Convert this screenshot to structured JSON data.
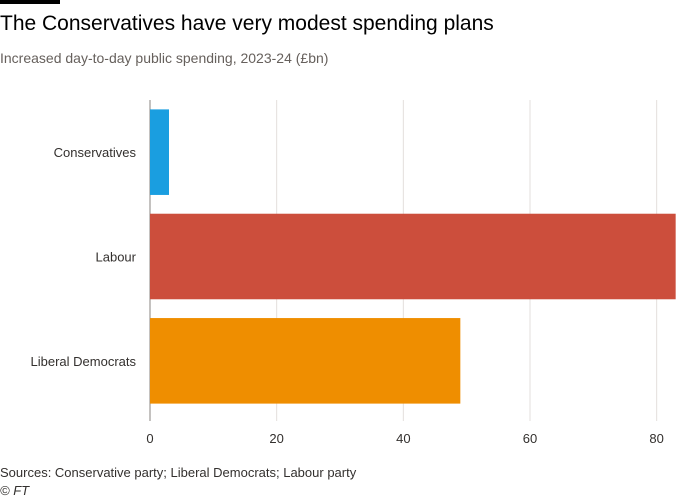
{
  "chart_data": {
    "type": "bar",
    "orientation": "horizontal",
    "title": "The Conservatives have very modest spending plans",
    "subtitle": "Increased day-to-day public spending, 2023-24 (£bn)",
    "categories": [
      "Conservatives",
      "Labour",
      "Liberal Democrats"
    ],
    "values": [
      3,
      83,
      49
    ],
    "colors": [
      "#1a9ee0",
      "#cc4e3c",
      "#ef8e00"
    ],
    "xlim": [
      0,
      84
    ],
    "xticks": [
      "0",
      "20",
      "40",
      "60",
      "80"
    ],
    "xtick_values": [
      0,
      20,
      40,
      60,
      80
    ],
    "grid": true,
    "xlabel": "",
    "ylabel": ""
  },
  "footer": {
    "source": "Sources: Conservative party; Liberal Democrats; Labour party",
    "credit": "© FT"
  }
}
